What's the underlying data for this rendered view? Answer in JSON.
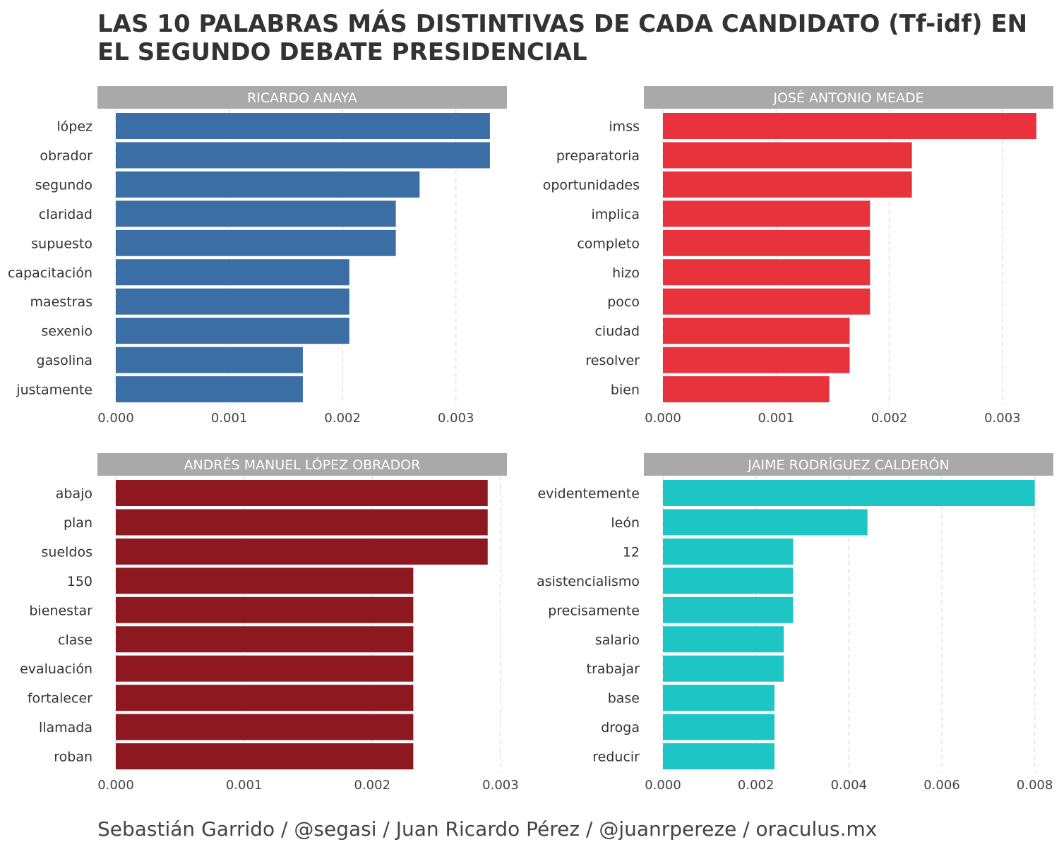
{
  "title": "LAS 10 PALABRAS MÁS DISTINTIVAS DE CADA CANDIDATO (Tf-idf) EN EL SEGUNDO DEBATE PRESIDENCIAL",
  "caption": "Sebastián Garrido / @segasi / Juan Ricardo Pérez / @juanrpereze / oraculus.mx",
  "colors": {
    "strip": "#a9a9a9",
    "grid": "#e2e2e2"
  },
  "chart_data": [
    {
      "type": "bar",
      "orientation": "horizontal",
      "facet": "RICARDO ANAYA",
      "color": "#3a6ea5",
      "categories": [
        "lópez",
        "obrador",
        "segundo",
        "claridad",
        "supuesto",
        "capacitación",
        "maestras",
        "sexenio",
        "gasolina",
        "justamente"
      ],
      "values": [
        0.0033,
        0.0033,
        0.00268,
        0.00247,
        0.00247,
        0.00206,
        0.00206,
        0.00206,
        0.00165,
        0.00165
      ],
      "xlim": [
        0,
        0.00345
      ],
      "ticks": [
        0,
        0.001,
        0.002,
        0.003
      ],
      "tick_labels": [
        "0.000",
        "0.001",
        "0.002",
        "0.003"
      ],
      "grid": true
    },
    {
      "type": "bar",
      "orientation": "horizontal",
      "facet": "JOSÉ ANTONIO MEADE",
      "color": "#e8323c",
      "categories": [
        "imss",
        "preparatoria",
        "oportunidades",
        "implica",
        "completo",
        "hizo",
        "poco",
        "ciudad",
        "resolver",
        "bien"
      ],
      "values": [
        0.0033,
        0.0022,
        0.0022,
        0.00183,
        0.00183,
        0.00183,
        0.00183,
        0.00165,
        0.00165,
        0.00147
      ],
      "xlim": [
        0,
        0.00345
      ],
      "ticks": [
        0,
        0.001,
        0.002,
        0.003
      ],
      "tick_labels": [
        "0.000",
        "0.001",
        "0.002",
        "0.003"
      ],
      "grid": true
    },
    {
      "type": "bar",
      "orientation": "horizontal",
      "facet": "ANDRÉS MANUEL LÓPEZ OBRADOR",
      "color": "#8e1820",
      "categories": [
        "abajo",
        "plan",
        "sueldos",
        "150",
        "bienestar",
        "clase",
        "evaluación",
        "fortalecer",
        "llamada",
        "roban"
      ],
      "values": [
        0.0029,
        0.0029,
        0.0029,
        0.00232,
        0.00232,
        0.00232,
        0.00232,
        0.00232,
        0.00232,
        0.00232
      ],
      "xlim": [
        0,
        0.00305
      ],
      "ticks": [
        0,
        0.001,
        0.002,
        0.003
      ],
      "tick_labels": [
        "0.000",
        "0.001",
        "0.002",
        "0.003"
      ],
      "grid": true
    },
    {
      "type": "bar",
      "orientation": "horizontal",
      "facet": "JAIME RODRÍGUEZ CALDERÓN",
      "color": "#1ec5c5",
      "categories": [
        "evidentemente",
        "león",
        "12",
        "asistencialismo",
        "precisamente",
        "salario",
        "trabajar",
        "base",
        "droga",
        "reducir"
      ],
      "values": [
        0.008,
        0.0044,
        0.0028,
        0.0028,
        0.0028,
        0.0026,
        0.0026,
        0.0024,
        0.0024,
        0.0024
      ],
      "xlim": [
        0,
        0.0084
      ],
      "ticks": [
        0,
        0.002,
        0.004,
        0.006,
        0.008
      ],
      "tick_labels": [
        "0.000",
        "0.002",
        "0.004",
        "0.006",
        "0.008"
      ],
      "grid": true
    }
  ]
}
